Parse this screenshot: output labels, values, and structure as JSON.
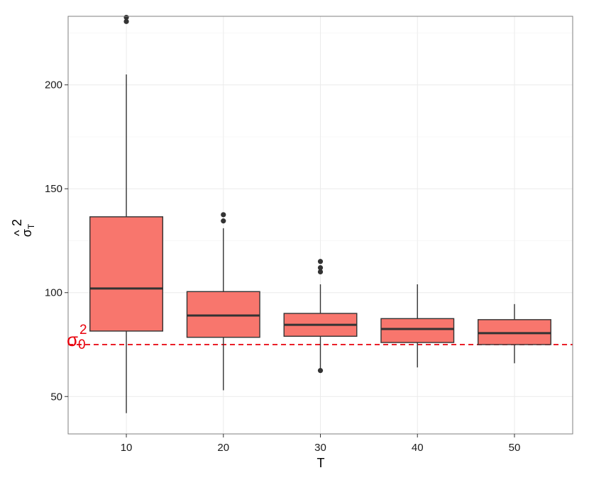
{
  "chart_data": {
    "type": "box",
    "xlabel": "T",
    "ylabel_base": "σ",
    "ylabel_hat": "^",
    "ylabel_sup": "2",
    "ylabel_sub": "T",
    "categories": [
      "10",
      "20",
      "30",
      "40",
      "50"
    ],
    "ylim": [
      32,
      233
    ],
    "yticks": [
      50,
      100,
      150,
      200
    ],
    "grid": true,
    "boxes": [
      {
        "label": "10",
        "whisker_low": 42,
        "q1": 81.5,
        "median": 102,
        "q3": 136.5,
        "whisker_high": 205,
        "outliers": [
          230.5,
          232.5
        ]
      },
      {
        "label": "20",
        "whisker_low": 53,
        "q1": 78.5,
        "median": 89,
        "q3": 100.5,
        "whisker_high": 131,
        "outliers": [
          134.5,
          137.5
        ]
      },
      {
        "label": "30",
        "whisker_low": 63,
        "q1": 79,
        "median": 84.5,
        "q3": 90,
        "whisker_high": 104,
        "outliers": [
          62.5,
          110,
          112,
          115
        ]
      },
      {
        "label": "40",
        "whisker_low": 64,
        "q1": 76,
        "median": 82.5,
        "q3": 87.5,
        "whisker_high": 104,
        "outliers": []
      },
      {
        "label": "50",
        "whisker_low": 66,
        "q1": 75,
        "median": 80.5,
        "q3": 87,
        "whisker_high": 94.5,
        "outliers": []
      }
    ],
    "reference_line": {
      "value": 75,
      "label_base": "σ",
      "label_sup": "2",
      "label_sub": "0",
      "color": "#e8000b",
      "style": "dashed"
    },
    "colors": {
      "box_fill": "#f8766d",
      "box_stroke": "#333333",
      "grid": "#ebebeb",
      "panel_border": "#7f7f7f"
    }
  }
}
